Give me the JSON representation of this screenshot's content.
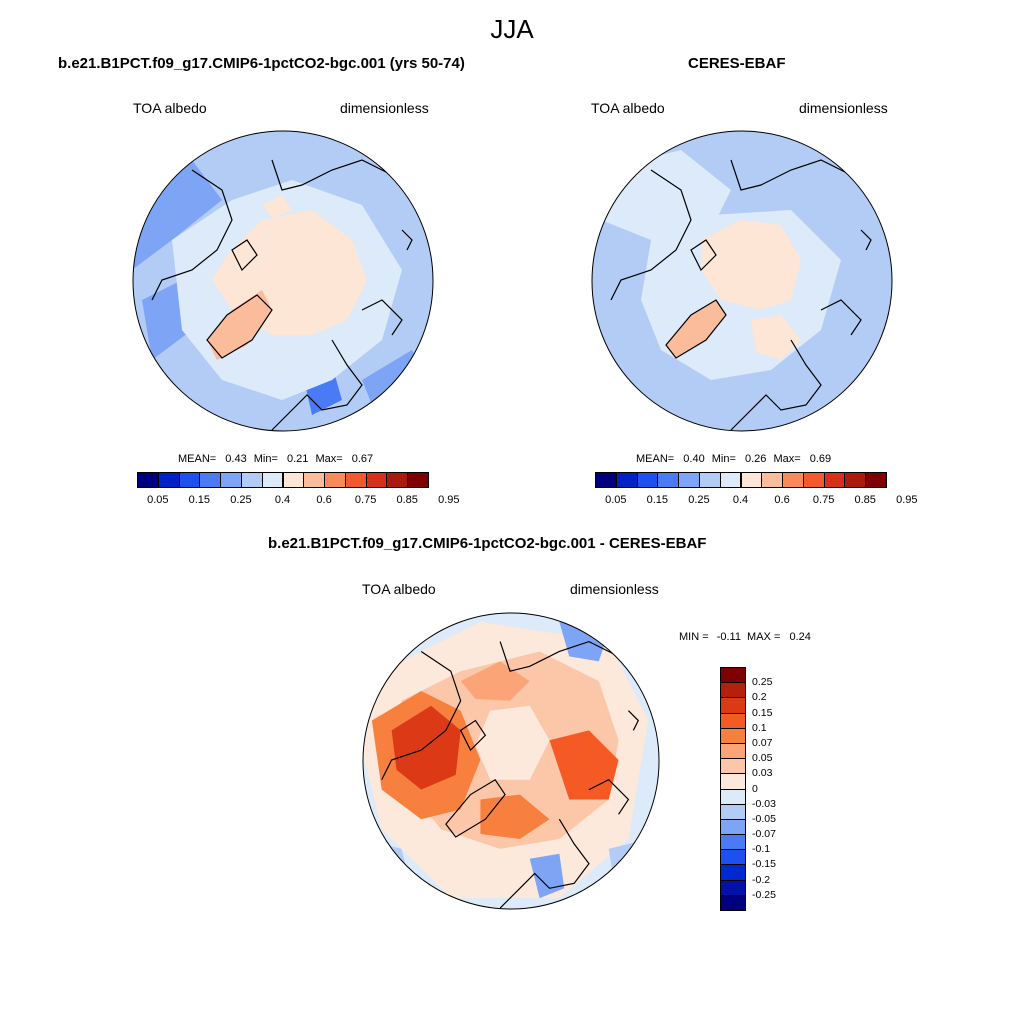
{
  "figure_title": "JJA",
  "panels": {
    "model": {
      "title": "b.e21.B1PCT.f09_g17.CMIP6-1pctCO2-bgc.001 (yrs 50-74)",
      "left_label": "TOA albedo",
      "right_label": "dimensionless",
      "stats": {
        "mean_label": "MEAN=",
        "mean": "0.43",
        "min_label": "Min=",
        "min": "0.21",
        "max_label": "Max=",
        "max": "0.67"
      }
    },
    "obs": {
      "title": "CERES-EBAF",
      "left_label": "TOA albedo",
      "right_label": "dimensionless",
      "stats": {
        "mean_label": "MEAN=",
        "mean": "0.40",
        "min_label": "Min=",
        "min": "0.26",
        "max_label": "Max=",
        "max": "0.69"
      }
    },
    "diff": {
      "title": "b.e21.B1PCT.f09_g17.CMIP6-1pctCO2-bgc.001 - CERES-EBAF",
      "left_label": "TOA albedo",
      "right_label": "dimensionless",
      "stats": {
        "min_label": "MIN =",
        "min": "-0.11",
        "max_label": "MAX =",
        "max": "0.24"
      }
    }
  },
  "colorbar_abs": {
    "colors": [
      "#00007f",
      "#0020c8",
      "#1e4ff0",
      "#4a7af5",
      "#7ea4f5",
      "#b3ccf5",
      "#dceaf9",
      "#fde6d6",
      "#fbbc9b",
      "#f98a5e",
      "#f2592e",
      "#d7301a",
      "#aa1b0e",
      "#7f0000"
    ],
    "tick_labels": [
      "0.05",
      "0.15",
      "0.25",
      "0.4",
      "0.6",
      "0.75",
      "0.85",
      "0.95"
    ]
  },
  "colorbar_diff": {
    "colors": [
      "#7f0000",
      "#b5200c",
      "#dc3a16",
      "#f55a24",
      "#f8803f",
      "#fba478",
      "#fcc7a8",
      "#fde8dc",
      "#dceaf9",
      "#b3ccf5",
      "#7ea4f5",
      "#4a7af5",
      "#1e4ff0",
      "#0028d0",
      "#0012a8",
      "#00007f"
    ],
    "tick_labels": [
      "0.25",
      "0.2",
      "0.15",
      "0.1",
      "0.07",
      "0.05",
      "0.03",
      "0",
      "-0.03",
      "-0.05",
      "-0.07",
      "-0.1",
      "-0.15",
      "-0.2",
      "-0.25"
    ]
  }
}
